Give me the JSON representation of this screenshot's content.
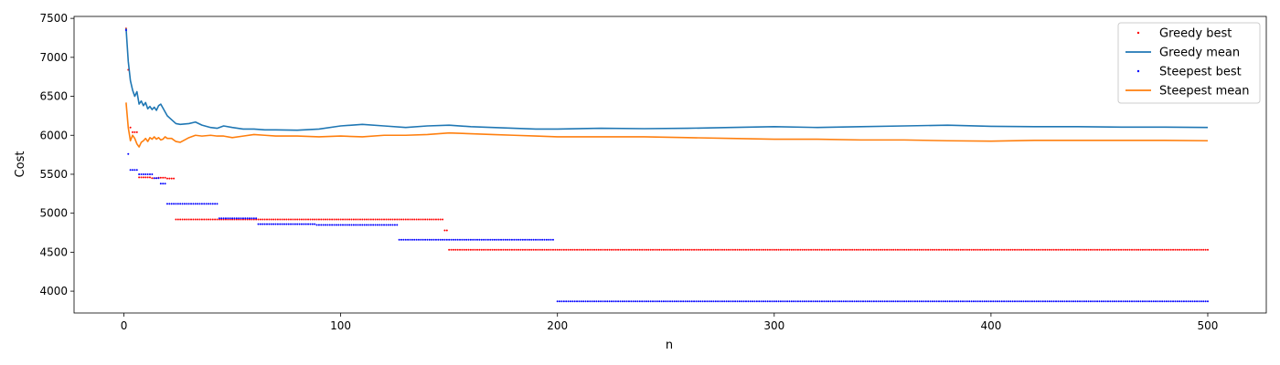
{
  "chart_data": {
    "type": "line",
    "xlabel": "n",
    "ylabel": "Cost",
    "xlim": [
      -23,
      527
    ],
    "ylim": [
      3720,
      7525
    ],
    "xticks": [
      0,
      100,
      200,
      300,
      400,
      500
    ],
    "yticks": [
      4000,
      4500,
      5000,
      5500,
      6000,
      6500,
      7000,
      7500
    ],
    "legend_position": "top-right",
    "grid": false,
    "series": [
      {
        "name": "Greedy best",
        "kind": "points",
        "color": "#ff0000",
        "steps": [
          {
            "from": 1,
            "to": 1,
            "value": 7370
          },
          {
            "from": 2,
            "to": 2,
            "value": 6840
          },
          {
            "from": 3,
            "to": 3,
            "value": 6100
          },
          {
            "from": 4,
            "to": 6,
            "value": 6040
          },
          {
            "from": 7,
            "to": 12,
            "value": 5460
          },
          {
            "from": 13,
            "to": 15,
            "value": 5450
          },
          {
            "from": 16,
            "to": 19,
            "value": 5455
          },
          {
            "from": 20,
            "to": 23,
            "value": 5445
          },
          {
            "from": 24,
            "to": 147,
            "value": 4920
          },
          {
            "from": 148,
            "to": 149,
            "value": 4780
          },
          {
            "from": 150,
            "to": 500,
            "value": 4530
          }
        ]
      },
      {
        "name": "Greedy mean",
        "kind": "line",
        "color": "#1f77b4",
        "x": [
          1,
          2,
          3,
          4,
          5,
          6,
          7,
          8,
          9,
          10,
          11,
          12,
          13,
          14,
          15,
          16,
          17,
          18,
          19,
          20,
          22,
          24,
          26,
          30,
          33,
          36,
          40,
          43,
          46,
          50,
          55,
          60,
          65,
          70,
          80,
          90,
          100,
          110,
          120,
          130,
          140,
          150,
          160,
          170,
          180,
          190,
          200,
          220,
          240,
          260,
          280,
          300,
          320,
          340,
          360,
          380,
          400,
          420,
          440,
          460,
          480,
          500
        ],
        "y": [
          7370,
          6950,
          6700,
          6580,
          6500,
          6560,
          6400,
          6440,
          6380,
          6420,
          6340,
          6370,
          6330,
          6360,
          6320,
          6380,
          6400,
          6350,
          6300,
          6250,
          6200,
          6150,
          6140,
          6150,
          6170,
          6130,
          6100,
          6090,
          6120,
          6100,
          6080,
          6080,
          6070,
          6070,
          6065,
          6080,
          6120,
          6140,
          6120,
          6100,
          6120,
          6130,
          6110,
          6100,
          6090,
          6080,
          6080,
          6090,
          6085,
          6090,
          6100,
          6110,
          6100,
          6110,
          6120,
          6130,
          6115,
          6110,
          6110,
          6105,
          6105,
          6100
        ]
      },
      {
        "name": "Steepest best",
        "kind": "points",
        "color": "#0000ff",
        "steps": [
          {
            "from": 1,
            "to": 1,
            "value": 7350
          },
          {
            "from": 2,
            "to": 2,
            "value": 5760
          },
          {
            "from": 3,
            "to": 6,
            "value": 5555
          },
          {
            "from": 7,
            "to": 13,
            "value": 5500
          },
          {
            "from": 14,
            "to": 16,
            "value": 5450
          },
          {
            "from": 17,
            "to": 19,
            "value": 5380
          },
          {
            "from": 20,
            "to": 43,
            "value": 5120
          },
          {
            "from": 44,
            "to": 61,
            "value": 4935
          },
          {
            "from": 62,
            "to": 88,
            "value": 4860
          },
          {
            "from": 89,
            "to": 126,
            "value": 4850
          },
          {
            "from": 127,
            "to": 198,
            "value": 4660
          },
          {
            "from": 200,
            "to": 500,
            "value": 3870
          }
        ]
      },
      {
        "name": "Steepest mean",
        "kind": "line",
        "color": "#ff7f0e",
        "x": [
          1,
          2,
          3,
          4,
          5,
          6,
          7,
          8,
          9,
          10,
          11,
          12,
          13,
          14,
          15,
          16,
          17,
          18,
          19,
          20,
          22,
          24,
          26,
          30,
          33,
          36,
          40,
          43,
          46,
          50,
          55,
          60,
          65,
          70,
          80,
          90,
          100,
          110,
          120,
          130,
          140,
          150,
          160,
          170,
          180,
          190,
          200,
          220,
          240,
          260,
          280,
          300,
          320,
          340,
          360,
          380,
          400,
          420,
          440,
          460,
          480,
          500
        ],
        "y": [
          6420,
          6100,
          5930,
          6000,
          5960,
          5890,
          5850,
          5910,
          5930,
          5960,
          5920,
          5970,
          5950,
          5980,
          5950,
          5970,
          5940,
          5950,
          5980,
          5960,
          5960,
          5920,
          5910,
          5970,
          6000,
          5990,
          6000,
          5990,
          5990,
          5970,
          5990,
          6010,
          6000,
          5990,
          5990,
          5980,
          5990,
          5980,
          6000,
          6000,
          6010,
          6030,
          6020,
          6010,
          6000,
          5990,
          5980,
          5980,
          5980,
          5970,
          5960,
          5950,
          5950,
          5940,
          5940,
          5930,
          5925,
          5935,
          5935,
          5935,
          5935,
          5930
        ]
      }
    ]
  }
}
